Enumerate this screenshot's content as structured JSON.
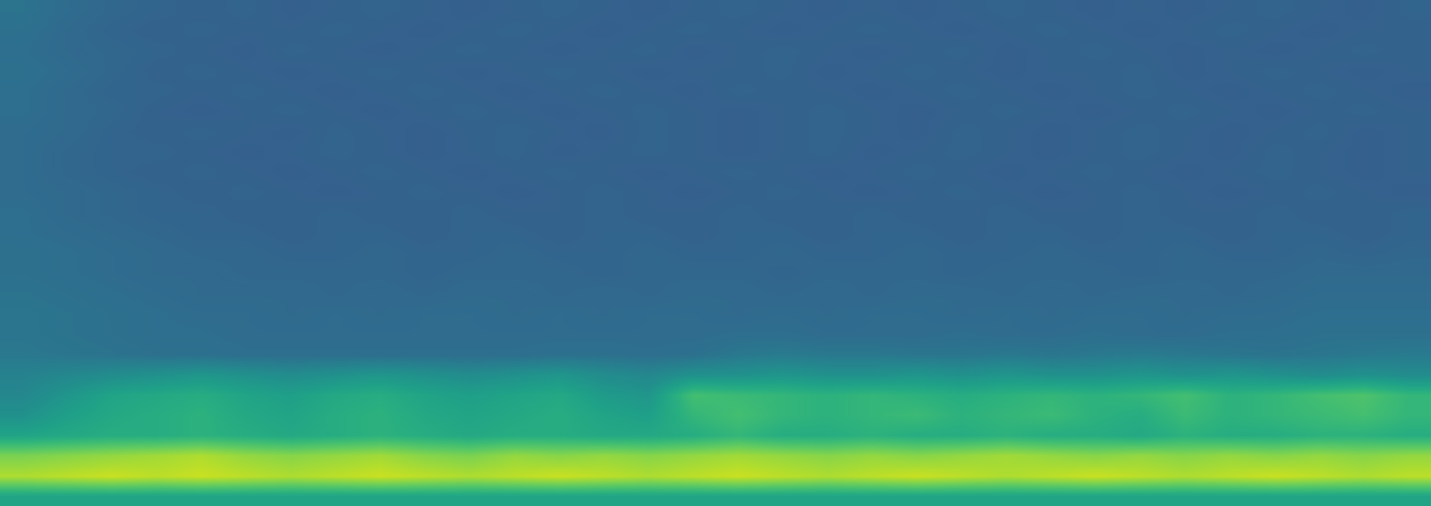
{
  "chart_data": {
    "type": "heatmap",
    "color": "viridis",
    "zlim": [
      0,
      1
    ],
    "tick_labels": false,
    "grid": false,
    "cells": [
      [
        0.38,
        0.35,
        0.33,
        0.32,
        0.31,
        0.32,
        0.3,
        0.31,
        0.32,
        0.31,
        0.3,
        0.31,
        0.32,
        0.31,
        0.3,
        0.31,
        0.32,
        0.31,
        0.3,
        0.31,
        0.3,
        0.31,
        0.32,
        0.31,
        0.3,
        0.31,
        0.3,
        0.31,
        0.32,
        0.31,
        0.3,
        0.32
      ],
      [
        0.37,
        0.34,
        0.32,
        0.31,
        0.32,
        0.31,
        0.31,
        0.32,
        0.31,
        0.3,
        0.31,
        0.32,
        0.31,
        0.3,
        0.31,
        0.32,
        0.31,
        0.3,
        0.31,
        0.32,
        0.31,
        0.3,
        0.31,
        0.32,
        0.31,
        0.3,
        0.31,
        0.32,
        0.31,
        0.3,
        0.31,
        0.31
      ],
      [
        0.36,
        0.34,
        0.33,
        0.32,
        0.31,
        0.3,
        0.32,
        0.31,
        0.3,
        0.31,
        0.32,
        0.31,
        0.3,
        0.31,
        0.32,
        0.3,
        0.31,
        0.32,
        0.31,
        0.3,
        0.31,
        0.32,
        0.3,
        0.31,
        0.32,
        0.31,
        0.3,
        0.31,
        0.3,
        0.31,
        0.32,
        0.31
      ],
      [
        0.37,
        0.35,
        0.33,
        0.31,
        0.32,
        0.31,
        0.3,
        0.31,
        0.32,
        0.31,
        0.3,
        0.31,
        0.32,
        0.31,
        0.3,
        0.31,
        0.31,
        0.32,
        0.3,
        0.31,
        0.32,
        0.31,
        0.3,
        0.31,
        0.31,
        0.32,
        0.3,
        0.31,
        0.32,
        0.31,
        0.3,
        0.31
      ],
      [
        0.36,
        0.34,
        0.32,
        0.32,
        0.31,
        0.32,
        0.31,
        0.3,
        0.31,
        0.32,
        0.31,
        0.3,
        0.31,
        0.32,
        0.31,
        0.3,
        0.32,
        0.31,
        0.31,
        0.3,
        0.31,
        0.32,
        0.31,
        0.3,
        0.31,
        0.32,
        0.31,
        0.3,
        0.31,
        0.32,
        0.31,
        0.3
      ],
      [
        0.36,
        0.34,
        0.33,
        0.31,
        0.3,
        0.31,
        0.32,
        0.31,
        0.3,
        0.31,
        0.32,
        0.31,
        0.3,
        0.31,
        0.32,
        0.31,
        0.3,
        0.31,
        0.32,
        0.31,
        0.3,
        0.31,
        0.32,
        0.31,
        0.3,
        0.31,
        0.32,
        0.31,
        0.3,
        0.31,
        0.32,
        0.31
      ],
      [
        0.35,
        0.34,
        0.32,
        0.31,
        0.32,
        0.31,
        0.3,
        0.32,
        0.31,
        0.3,
        0.31,
        0.32,
        0.31,
        0.3,
        0.32,
        0.31,
        0.3,
        0.31,
        0.32,
        0.31,
        0.3,
        0.32,
        0.31,
        0.3,
        0.31,
        0.32,
        0.31,
        0.3,
        0.31,
        0.32,
        0.3,
        0.31
      ],
      [
        0.35,
        0.33,
        0.32,
        0.32,
        0.31,
        0.3,
        0.31,
        0.32,
        0.31,
        0.3,
        0.31,
        0.32,
        0.3,
        0.31,
        0.32,
        0.31,
        0.3,
        0.31,
        0.32,
        0.3,
        0.31,
        0.32,
        0.31,
        0.3,
        0.31,
        0.32,
        0.31,
        0.3,
        0.32,
        0.31,
        0.3,
        0.31
      ],
      [
        0.35,
        0.33,
        0.32,
        0.31,
        0.32,
        0.31,
        0.3,
        0.31,
        0.32,
        0.31,
        0.3,
        0.31,
        0.32,
        0.31,
        0.3,
        0.31,
        0.32,
        0.31,
        0.3,
        0.31,
        0.32,
        0.31,
        0.3,
        0.31,
        0.32,
        0.31,
        0.3,
        0.31,
        0.32,
        0.31,
        0.3,
        0.31
      ],
      [
        0.35,
        0.34,
        0.33,
        0.32,
        0.31,
        0.32,
        0.31,
        0.3,
        0.31,
        0.32,
        0.31,
        0.3,
        0.31,
        0.32,
        0.31,
        0.3,
        0.31,
        0.32,
        0.31,
        0.3,
        0.31,
        0.32,
        0.31,
        0.3,
        0.31,
        0.32,
        0.31,
        0.3,
        0.31,
        0.32,
        0.31,
        0.3
      ],
      [
        0.36,
        0.34,
        0.33,
        0.32,
        0.32,
        0.31,
        0.31,
        0.32,
        0.31,
        0.31,
        0.32,
        0.31,
        0.31,
        0.32,
        0.31,
        0.31,
        0.32,
        0.31,
        0.31,
        0.32,
        0.31,
        0.31,
        0.32,
        0.31,
        0.31,
        0.32,
        0.31,
        0.31,
        0.32,
        0.31,
        0.31,
        0.32
      ],
      [
        0.36,
        0.35,
        0.34,
        0.33,
        0.32,
        0.32,
        0.31,
        0.32,
        0.32,
        0.31,
        0.32,
        0.32,
        0.31,
        0.32,
        0.32,
        0.31,
        0.32,
        0.32,
        0.31,
        0.32,
        0.32,
        0.31,
        0.32,
        0.32,
        0.31,
        0.32,
        0.32,
        0.31,
        0.32,
        0.32,
        0.31,
        0.32
      ],
      [
        0.37,
        0.36,
        0.35,
        0.34,
        0.33,
        0.33,
        0.32,
        0.32,
        0.33,
        0.32,
        0.32,
        0.33,
        0.32,
        0.32,
        0.33,
        0.32,
        0.32,
        0.33,
        0.32,
        0.32,
        0.33,
        0.32,
        0.32,
        0.33,
        0.32,
        0.32,
        0.33,
        0.32,
        0.32,
        0.33,
        0.32,
        0.33
      ],
      [
        0.37,
        0.36,
        0.35,
        0.34,
        0.34,
        0.33,
        0.33,
        0.33,
        0.33,
        0.32,
        0.33,
        0.33,
        0.33,
        0.32,
        0.33,
        0.33,
        0.33,
        0.32,
        0.33,
        0.33,
        0.33,
        0.32,
        0.33,
        0.33,
        0.33,
        0.32,
        0.33,
        0.33,
        0.33,
        0.34,
        0.34,
        0.34
      ],
      [
        0.38,
        0.37,
        0.36,
        0.35,
        0.34,
        0.34,
        0.34,
        0.33,
        0.34,
        0.33,
        0.34,
        0.34,
        0.33,
        0.34,
        0.33,
        0.34,
        0.34,
        0.33,
        0.34,
        0.33,
        0.34,
        0.34,
        0.33,
        0.34,
        0.33,
        0.34,
        0.34,
        0.33,
        0.34,
        0.35,
        0.35,
        0.35
      ],
      [
        0.39,
        0.38,
        0.37,
        0.36,
        0.35,
        0.35,
        0.34,
        0.35,
        0.34,
        0.35,
        0.35,
        0.34,
        0.35,
        0.34,
        0.35,
        0.35,
        0.34,
        0.35,
        0.34,
        0.35,
        0.35,
        0.34,
        0.35,
        0.34,
        0.35,
        0.35,
        0.34,
        0.35,
        0.35,
        0.36,
        0.36,
        0.36
      ],
      [
        0.39,
        0.38,
        0.37,
        0.36,
        0.36,
        0.35,
        0.35,
        0.35,
        0.35,
        0.35,
        0.35,
        0.35,
        0.35,
        0.35,
        0.35,
        0.35,
        0.36,
        0.36,
        0.35,
        0.35,
        0.35,
        0.36,
        0.35,
        0.35,
        0.36,
        0.35,
        0.35,
        0.36,
        0.36,
        0.37,
        0.37,
        0.37
      ],
      [
        0.4,
        0.39,
        0.38,
        0.37,
        0.37,
        0.36,
        0.36,
        0.36,
        0.36,
        0.36,
        0.36,
        0.36,
        0.37,
        0.37,
        0.36,
        0.37,
        0.4,
        0.41,
        0.4,
        0.4,
        0.39,
        0.39,
        0.4,
        0.39,
        0.4,
        0.41,
        0.4,
        0.39,
        0.38,
        0.39,
        0.4,
        0.41
      ],
      [
        0.44,
        0.46,
        0.48,
        0.5,
        0.52,
        0.5,
        0.48,
        0.5,
        0.52,
        0.5,
        0.48,
        0.5,
        0.52,
        0.48,
        0.46,
        0.5,
        0.5,
        0.52,
        0.5,
        0.5,
        0.52,
        0.5,
        0.52,
        0.5,
        0.5,
        0.52,
        0.5,
        0.52,
        0.5,
        0.48,
        0.5,
        0.48
      ],
      [
        0.46,
        0.52,
        0.58,
        0.6,
        0.62,
        0.58,
        0.56,
        0.6,
        0.62,
        0.58,
        0.56,
        0.58,
        0.6,
        0.54,
        0.52,
        0.7,
        0.68,
        0.66,
        0.64,
        0.66,
        0.64,
        0.62,
        0.64,
        0.66,
        0.64,
        0.66,
        0.7,
        0.64,
        0.66,
        0.7,
        0.72,
        0.66
      ],
      [
        0.5,
        0.56,
        0.6,
        0.62,
        0.64,
        0.6,
        0.58,
        0.62,
        0.64,
        0.6,
        0.58,
        0.6,
        0.62,
        0.58,
        0.56,
        0.66,
        0.7,
        0.66,
        0.64,
        0.66,
        0.68,
        0.64,
        0.66,
        0.68,
        0.64,
        0.62,
        0.68,
        0.64,
        0.66,
        0.68,
        0.7,
        0.66
      ],
      [
        0.58,
        0.6,
        0.62,
        0.62,
        0.64,
        0.62,
        0.6,
        0.62,
        0.64,
        0.62,
        0.6,
        0.62,
        0.62,
        0.6,
        0.6,
        0.62,
        0.66,
        0.62,
        0.62,
        0.64,
        0.62,
        0.62,
        0.64,
        0.62,
        0.62,
        0.6,
        0.64,
        0.62,
        0.62,
        0.64,
        0.64,
        0.62
      ],
      [
        0.8,
        0.82,
        0.84,
        0.86,
        0.88,
        0.84,
        0.82,
        0.84,
        0.86,
        0.82,
        0.8,
        0.84,
        0.82,
        0.84,
        0.82,
        0.84,
        0.86,
        0.84,
        0.82,
        0.84,
        0.82,
        0.84,
        0.86,
        0.84,
        0.82,
        0.84,
        0.82,
        0.84,
        0.82,
        0.84,
        0.82,
        0.84
      ],
      [
        0.88,
        0.9,
        0.92,
        0.9,
        0.92,
        0.9,
        0.88,
        0.9,
        0.92,
        0.9,
        0.88,
        0.9,
        0.92,
        0.9,
        0.88,
        0.9,
        0.92,
        0.9,
        0.88,
        0.9,
        0.92,
        0.9,
        0.88,
        0.9,
        0.92,
        0.9,
        0.88,
        0.9,
        0.92,
        0.9,
        0.88,
        0.9
      ],
      [
        0.58,
        0.58,
        0.58,
        0.58,
        0.58,
        0.58,
        0.58,
        0.58,
        0.58,
        0.58,
        0.58,
        0.58,
        0.58,
        0.58,
        0.58,
        0.58,
        0.58,
        0.58,
        0.58,
        0.58,
        0.58,
        0.58,
        0.58,
        0.58,
        0.58,
        0.58,
        0.58,
        0.58,
        0.58,
        0.58,
        0.58,
        0.58
      ]
    ]
  }
}
